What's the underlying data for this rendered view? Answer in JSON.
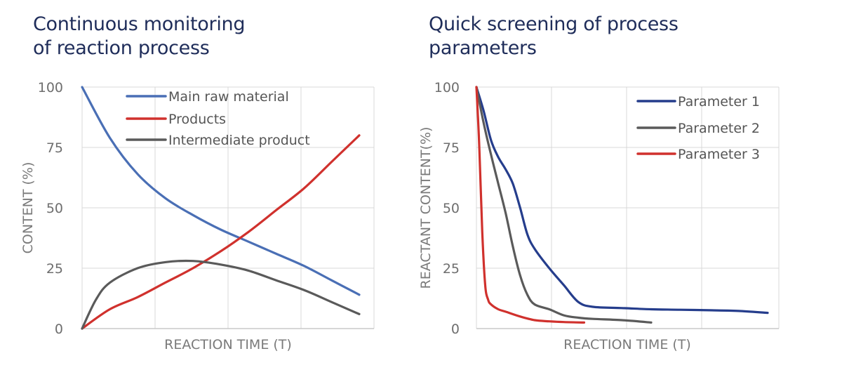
{
  "chart_data": [
    {
      "type": "line",
      "title_lines": [
        "Continuous monitoring",
        "of reaction process"
      ],
      "xlabel": "REACTION TIME (T)",
      "ylabel": "CONTENT (%)",
      "ylim": [
        0,
        100
      ],
      "xlim": [
        0,
        10
      ],
      "yticks": [
        "0",
        "25",
        "50",
        "75",
        "100"
      ],
      "grid": true,
      "legend": "top-right",
      "series": [
        {
          "name": "Main raw material",
          "color": "#4a6fb5",
          "x": [
            0,
            1,
            2,
            3,
            4,
            5,
            6,
            7,
            8,
            9,
            10
          ],
          "y": [
            100,
            79,
            64,
            54,
            47,
            41,
            36,
            31,
            26,
            20,
            14
          ]
        },
        {
          "name": "Products",
          "color": "#d0312d",
          "x": [
            0,
            1,
            2,
            3,
            4,
            5,
            6,
            7,
            8,
            9,
            10
          ],
          "y": [
            0,
            8,
            13,
            19,
            25,
            32,
            40,
            49,
            58,
            69,
            80
          ]
        },
        {
          "name": "Intermediate product",
          "color": "#5a5a5a",
          "x": [
            0,
            0.5,
            1,
            2,
            3,
            4,
            5,
            6,
            7,
            8,
            9,
            10
          ],
          "y": [
            0,
            12,
            19,
            25,
            27.5,
            28,
            26.5,
            24,
            20,
            16,
            11,
            6
          ]
        }
      ]
    },
    {
      "type": "line",
      "title_lines": [
        "Quick screening of process",
        "parameters"
      ],
      "xlabel": "REACTION TIME (T)",
      "ylabel": "REACTANT CONTENT(%)",
      "ylim": [
        0,
        100
      ],
      "xlim": [
        0,
        10
      ],
      "yticks": [
        "0",
        "25",
        "50",
        "75",
        "100"
      ],
      "grid": true,
      "legend": "top-right",
      "series": [
        {
          "name": "Parameter 1",
          "color": "#253d8c",
          "x": [
            0,
            0.25,
            0.5,
            0.75,
            1,
            1.25,
            1.5,
            1.75,
            2,
            2.5,
            3,
            3.5,
            4,
            5,
            6,
            7,
            8,
            9,
            10
          ],
          "y": [
            100,
            90,
            78,
            71,
            66,
            60,
            50,
            39,
            33,
            25,
            18,
            11,
            9,
            8.5,
            8,
            7.8,
            7.6,
            7.3,
            6.5
          ]
        },
        {
          "name": "Parameter 2",
          "color": "#5a5a5a",
          "x": [
            0,
            0.25,
            0.5,
            0.75,
            1,
            1.25,
            1.5,
            1.75,
            2,
            2.5,
            3,
            3.5,
            4,
            5,
            6
          ],
          "y": [
            100,
            85,
            72,
            60,
            48,
            34,
            22,
            14,
            10,
            8,
            5.5,
            4.5,
            4,
            3.5,
            2.5
          ]
        },
        {
          "name": "Parameter 3",
          "color": "#d0312d",
          "x": [
            0,
            0.1,
            0.2,
            0.3,
            0.4,
            0.5,
            0.75,
            1,
            1.5,
            2,
            2.5,
            3,
            3.7
          ],
          "y": [
            100,
            75,
            40,
            18,
            12,
            10,
            8,
            7,
            5,
            3.5,
            3,
            2.7,
            2.5
          ]
        }
      ]
    }
  ]
}
